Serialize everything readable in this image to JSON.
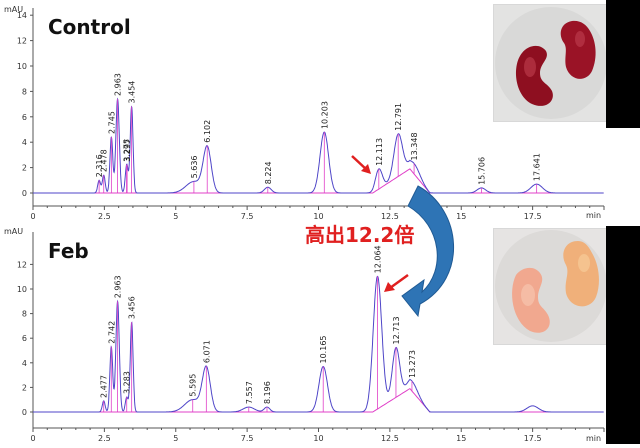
{
  "chart_data": [
    {
      "type": "line",
      "panel": "top",
      "title": "Control",
      "ylabel": "mAU",
      "xlabel": "min",
      "ylim": [
        -1,
        14
      ],
      "xlim": [
        0,
        20
      ],
      "y_ticks": [
        "0",
        "2",
        "4",
        "6",
        "8",
        "10",
        "12",
        "14"
      ],
      "x_ticks": [
        "0",
        "2.5",
        "5",
        "7.5",
        "10",
        "12.5",
        "15",
        "17.5"
      ],
      "peaks": [
        {
          "rt": 2.316,
          "label": "2.316",
          "height": 1.0,
          "width": 0.05
        },
        {
          "rt": 2.478,
          "label": "2.478",
          "height": 1.4,
          "width": 0.05
        },
        {
          "rt": 2.745,
          "label": "2.745",
          "height": 4.4,
          "width": 0.05
        },
        {
          "rt": 2.963,
          "label": "2.963",
          "height": 7.4,
          "width": 0.06
        },
        {
          "rt": 3.275,
          "label": "3.275",
          "height": 1.3,
          "width": 0.05
        },
        {
          "rt": 3.297,
          "label": "3.297",
          "height": 1.0,
          "width": 0.05
        },
        {
          "rt": 3.454,
          "label": "3.454",
          "height": 6.8,
          "width": 0.05
        },
        {
          "rt": 5.636,
          "label": "5.636",
          "height": 0.9,
          "width": 0.28
        },
        {
          "rt": 6.102,
          "label": "6.102",
          "height": 3.5,
          "width": 0.14
        },
        {
          "rt": 8.224,
          "label": "8.224",
          "height": 0.45,
          "width": 0.12
        },
        {
          "rt": 10.203,
          "label": "10.203",
          "height": 4.8,
          "width": 0.15
        },
        {
          "rt": 12.113,
          "label": "12.113",
          "height": 1.6,
          "width": 0.12
        },
        {
          "rt": 12.791,
          "label": "12.791",
          "height": 3.4,
          "width": 0.15
        },
        {
          "rt": 13.348,
          "label": "13.348",
          "height": 0.9,
          "width": 0.2
        },
        {
          "rt": 15.706,
          "label": "15.706",
          "height": 0.4,
          "width": 0.15
        },
        {
          "rt": 17.641,
          "label": "17.641",
          "height": 0.7,
          "width": 0.2
        }
      ],
      "annotations": [
        "Control"
      ]
    },
    {
      "type": "line",
      "panel": "bottom",
      "title": "Feb",
      "ylabel": "mAU",
      "xlabel": "min",
      "ylim": [
        -1,
        14
      ],
      "xlim": [
        0,
        20
      ],
      "y_ticks": [
        "0",
        "2",
        "4",
        "6",
        "8",
        "10",
        "12"
      ],
      "x_ticks": [
        "0",
        "2.5",
        "5",
        "7.5",
        "10",
        "12.5",
        "15",
        "17.5"
      ],
      "peaks": [
        {
          "rt": 2.477,
          "label": "2.477",
          "height": 0.9,
          "width": 0.05
        },
        {
          "rt": 2.742,
          "label": "2.742",
          "height": 5.3,
          "width": 0.05
        },
        {
          "rt": 2.963,
          "label": "2.963",
          "height": 9.0,
          "width": 0.06
        },
        {
          "rt": 3.283,
          "label": "3.283",
          "height": 1.2,
          "width": 0.05
        },
        {
          "rt": 3.456,
          "label": "3.456",
          "height": 7.3,
          "width": 0.05
        },
        {
          "rt": 5.595,
          "label": "5.595",
          "height": 1.0,
          "width": 0.28
        },
        {
          "rt": 6.071,
          "label": "6.071",
          "height": 3.5,
          "width": 0.14
        },
        {
          "rt": 7.557,
          "label": "7.557",
          "height": 0.4,
          "width": 0.2
        },
        {
          "rt": 8.196,
          "label": "8.196",
          "height": 0.4,
          "width": 0.1
        },
        {
          "rt": 10.165,
          "label": "10.165",
          "height": 3.7,
          "width": 0.15
        },
        {
          "rt": 12.064,
          "label": "12.064",
          "height": 10.8,
          "width": 0.15
        },
        {
          "rt": 12.713,
          "label": "12.713",
          "height": 4.1,
          "width": 0.13
        },
        {
          "rt": 13.273,
          "label": "13.273",
          "height": 0.9,
          "width": 0.2
        },
        {
          "rt": 17.5,
          "label": "",
          "height": 0.5,
          "width": 0.2
        }
      ],
      "annotations": [
        "Feb"
      ]
    }
  ],
  "callout": {
    "text": "高出12.2倍"
  },
  "colors": {
    "trace": "#4f46c8",
    "baseline": "#e040c8",
    "arrow": "#2e74b5",
    "highlight": "#e02020",
    "axis": "#555555"
  }
}
